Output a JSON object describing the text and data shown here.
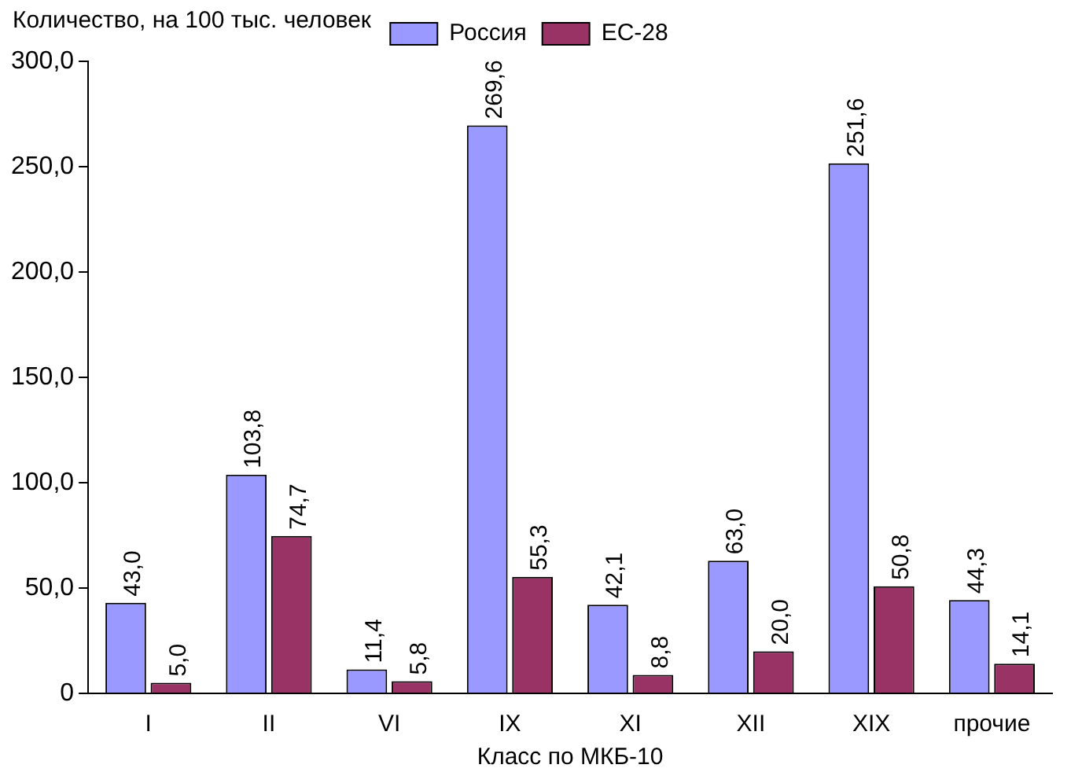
{
  "chart_data": {
    "type": "bar",
    "ylabel": "Количество, на 100 тыс. человек",
    "xlabel": "Класс по МКБ-10",
    "categories": [
      "I",
      "II",
      "VI",
      "IX",
      "XI",
      "XII",
      "XIX",
      "прочие"
    ],
    "series": [
      {
        "name": "Россия",
        "color": "#9999ff",
        "values": [
          43.0,
          103.8,
          11.4,
          269.6,
          42.1,
          63.0,
          251.6,
          44.3
        ],
        "value_labels": [
          "43,0",
          "103,8",
          "11,4",
          "269,6",
          "42,1",
          "63,0",
          "251,6",
          "44,3"
        ]
      },
      {
        "name": "ЕС-28",
        "color": "#993366",
        "values": [
          5.0,
          74.7,
          5.8,
          55.3,
          8.8,
          20.0,
          50.8,
          14.1
        ],
        "value_labels": [
          "5,0",
          "74,7",
          "5,8",
          "55,3",
          "8,8",
          "20,0",
          "50,8",
          "14,1"
        ]
      }
    ],
    "ylim": [
      0,
      300
    ],
    "yticks": [
      {
        "value": 0,
        "label": "0"
      },
      {
        "value": 50,
        "label": "50,0"
      },
      {
        "value": 100,
        "label": "100,0"
      },
      {
        "value": 150,
        "label": "150,0"
      },
      {
        "value": 200,
        "label": "200,0"
      },
      {
        "value": 250,
        "label": "250,0"
      },
      {
        "value": 300,
        "label": "300,0"
      }
    ],
    "grid": false,
    "legend": "top"
  }
}
